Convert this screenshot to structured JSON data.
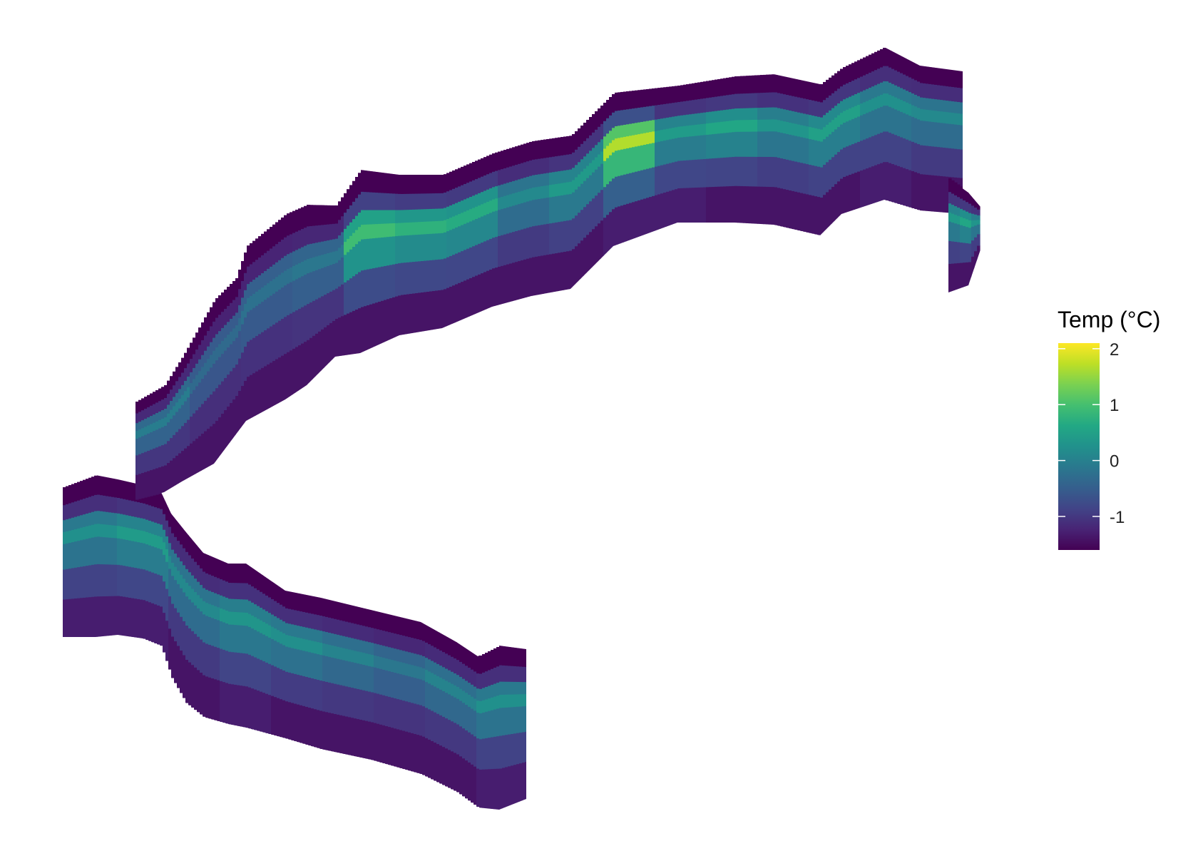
{
  "chart_data": {
    "type": "heatmap",
    "title": "",
    "xlabel": "",
    "ylabel": "",
    "grid": false,
    "axes_visible": false,
    "description_of_encoding": "fill colour encodes temperature along a curved transect ribbon; upper layers show warm core band, lower layers cold",
    "colorbar": {
      "title": "Temp (°C)",
      "palette": "viridis",
      "range": [
        -1.6,
        2.1
      ],
      "ticks": [
        2,
        1,
        0,
        -1
      ],
      "tick_labels": [
        "2",
        "1",
        "0",
        "-1"
      ],
      "placement": "right"
    },
    "ribbon": {
      "stations": [
        {
          "id": 1,
          "surface": -1.6,
          "core": 0.4,
          "deep": -1.3
        },
        {
          "id": 2,
          "surface": -1.6,
          "core": 0.6,
          "deep": -1.3
        },
        {
          "id": 3,
          "surface": -1.6,
          "core": 0.3,
          "deep": -1.4
        },
        {
          "id": 4,
          "surface": -1.6,
          "core": 0.5,
          "deep": -1.3
        },
        {
          "id": 5,
          "surface": -1.6,
          "core": 0.4,
          "deep": -1.4
        },
        {
          "id": 6,
          "surface": -1.6,
          "core": 0.2,
          "deep": -1.4
        },
        {
          "id": 7,
          "surface": -1.6,
          "core": 0.0,
          "deep": -1.4
        },
        {
          "id": 8,
          "surface": -1.6,
          "core": 0.2,
          "deep": -1.4
        },
        {
          "id": 9,
          "surface": -1.6,
          "core": 0.4,
          "deep": -1.3
        },
        {
          "id": 10,
          "surface": -1.6,
          "core": 0.1,
          "deep": -1.4
        },
        {
          "id": 11,
          "surface": -1.6,
          "core": -0.2,
          "deep": -1.4
        },
        {
          "id": 12,
          "surface": -1.6,
          "core": -0.1,
          "deep": -1.4
        },
        {
          "id": 13,
          "surface": -1.6,
          "core": 0.0,
          "deep": -1.4
        },
        {
          "id": 14,
          "surface": -1.6,
          "core": 1.2,
          "deep": -1.4
        },
        {
          "id": 15,
          "surface": -1.6,
          "core": 1.0,
          "deep": -1.4
        },
        {
          "id": 16,
          "surface": -1.6,
          "core": 0.9,
          "deep": -1.4
        },
        {
          "id": 17,
          "surface": -1.6,
          "core": 0.3,
          "deep": -1.4
        },
        {
          "id": 18,
          "surface": -1.6,
          "core": 0.6,
          "deep": -1.4
        },
        {
          "id": 19,
          "surface": -1.6,
          "core": 2.0,
          "deep": -1.3
        },
        {
          "id": 20,
          "surface": -1.6,
          "core": 0.6,
          "deep": -1.3
        },
        {
          "id": 21,
          "surface": -1.6,
          "core": 0.8,
          "deep": -1.4
        },
        {
          "id": 22,
          "surface": -1.6,
          "core": 0.5,
          "deep": -1.4
        },
        {
          "id": 23,
          "surface": -1.6,
          "core": 0.7,
          "deep": -1.4
        },
        {
          "id": 24,
          "surface": -1.6,
          "core": 0.4,
          "deep": -1.3
        },
        {
          "id": 25,
          "surface": -1.6,
          "core": 0.3,
          "deep": -1.4
        },
        {
          "id": 26,
          "surface": -1.6,
          "core": 0.6,
          "deep": -1.4
        },
        {
          "id": 27,
          "surface": -1.6,
          "core": 0.8,
          "deep": -1.4
        },
        {
          "id": 28,
          "surface": -1.6,
          "core": 0.5,
          "deep": -1.4
        }
      ]
    }
  }
}
